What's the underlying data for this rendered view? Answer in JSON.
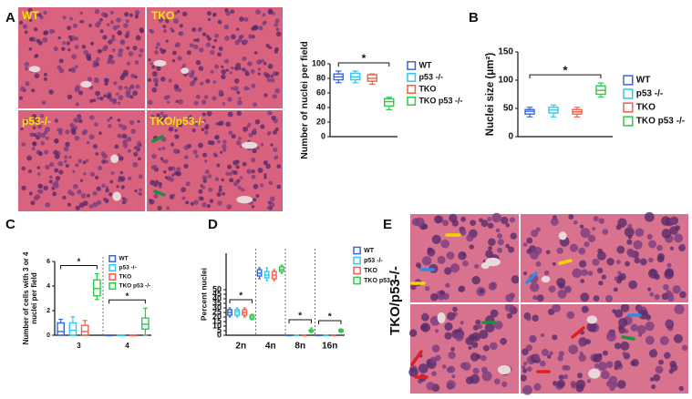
{
  "figure": {
    "panels": [
      "A",
      "B",
      "C",
      "D",
      "E"
    ],
    "image_labels": [
      "WT",
      "TKO",
      "p53-/-",
      "TKO/p53-/-"
    ],
    "panel_e_label": "TKO/p53-/-"
  },
  "chart_data": [
    {
      "type": "box",
      "ylabel": "Number of nuclei per field",
      "ylim": [
        0,
        100
      ],
      "yticks": [
        0,
        20,
        40,
        60,
        80,
        100
      ],
      "annotations": [
        "*"
      ],
      "series": [
        {
          "name": "WT",
          "color": "#3a66d8",
          "values": [
            {
              "min": 74,
              "q1": 78,
              "median": 82,
              "q3": 86,
              "max": 90
            }
          ]
        },
        {
          "name": "p53 -/-",
          "color": "#2ec8f0",
          "values": [
            {
              "min": 74,
              "q1": 78,
              "median": 82,
              "q3": 87,
              "max": 90
            }
          ]
        },
        {
          "name": "TKO",
          "color": "#f0604a",
          "values": [
            {
              "min": 72,
              "q1": 76,
              "median": 80,
              "q3": 85,
              "max": 86
            }
          ]
        },
        {
          "name": "TKO p53 -/-",
          "color": "#2fc84a",
          "values": [
            {
              "min": 37,
              "q1": 42,
              "median": 48,
              "q3": 52,
              "max": 54
            }
          ]
        }
      ]
    },
    {
      "type": "box",
      "ylabel": "Nuclei size (μm²)",
      "ylim": [
        0,
        150
      ],
      "yticks": [
        0,
        50,
        100,
        150
      ],
      "annotations": [
        "*"
      ],
      "series": [
        {
          "name": "WT",
          "color": "#3a66d8",
          "values": [
            {
              "min": 35,
              "q1": 40,
              "median": 45,
              "q3": 48,
              "max": 52
            }
          ]
        },
        {
          "name": "p53 -/-",
          "color": "#2ec8f0",
          "values": [
            {
              "min": 35,
              "q1": 42,
              "median": 47,
              "q3": 52,
              "max": 56
            }
          ]
        },
        {
          "name": "TKO",
          "color": "#f0604a",
          "values": [
            {
              "min": 35,
              "q1": 40,
              "median": 44,
              "q3": 48,
              "max": 52
            }
          ]
        },
        {
          "name": "TKO p53 -/-",
          "color": "#2fc84a",
          "values": [
            {
              "min": 70,
              "q1": 75,
              "median": 82,
              "q3": 90,
              "max": 95
            }
          ]
        }
      ]
    },
    {
      "type": "box",
      "ylabel": [
        "Number of cells with 3 or 4",
        "nuclei per field"
      ],
      "categories": [
        "3",
        "4"
      ],
      "ylim": [
        0,
        6
      ],
      "yticks": [
        0,
        2,
        4,
        6
      ],
      "annotations": [
        "*",
        "*"
      ],
      "series": [
        {
          "name": "WT",
          "color": "#3a66d8",
          "values": [
            {
              "min": 0,
              "q1": 0,
              "median": 0.3,
              "q3": 1,
              "max": 1.3
            },
            {
              "min": 0,
              "q1": 0,
              "median": 0,
              "q3": 0,
              "max": 0
            }
          ]
        },
        {
          "name": "p53 -/-",
          "color": "#2ec8f0",
          "values": [
            {
              "min": 0,
              "q1": 0,
              "median": 0.4,
              "q3": 1,
              "max": 1.5
            },
            {
              "min": 0,
              "q1": 0,
              "median": 0,
              "q3": 0,
              "max": 0
            }
          ]
        },
        {
          "name": "TKO",
          "color": "#f0604a",
          "values": [
            {
              "min": 0,
              "q1": 0,
              "median": 0.3,
              "q3": 0.8,
              "max": 1.2
            },
            {
              "min": 0,
              "q1": 0,
              "median": 0,
              "q3": 0,
              "max": 0
            }
          ]
        },
        {
          "name": "TKO p53 -/-",
          "color": "#2fc84a",
          "values": [
            {
              "min": 2.9,
              "q1": 3.2,
              "median": 3.8,
              "q3": 4.5,
              "max": 5
            },
            {
              "min": 0,
              "q1": 0.5,
              "median": 0.9,
              "q3": 1.4,
              "max": 2.2
            }
          ]
        }
      ]
    },
    {
      "type": "box",
      "ylabel": "Percent nuclei",
      "categories": [
        "2n",
        "4n",
        "8n",
        "16n"
      ],
      "ylim": [
        0,
        90
      ],
      "yticks": [
        0,
        5,
        10,
        15,
        20,
        25,
        30,
        35,
        40,
        45,
        50
      ],
      "annotations": [
        "*",
        "*",
        "*"
      ],
      "series": [
        {
          "name": "WT",
          "color": "#3a66d8",
          "values": [
            {
              "min": 20,
              "q1": 22,
              "median": 25,
              "q3": 28,
              "max": 30
            },
            {
              "min": 62,
              "q1": 65,
              "median": 68,
              "q3": 72,
              "max": 74
            },
            {
              "min": 0,
              "q1": 0,
              "median": 0,
              "q3": 0,
              "max": 0
            },
            {
              "min": 0,
              "q1": 0,
              "median": 0,
              "q3": 0,
              "max": 0
            }
          ]
        },
        {
          "name": "p53 -/-",
          "color": "#2ec8f0",
          "values": [
            {
              "min": 20,
              "q1": 22,
              "median": 26,
              "q3": 28,
              "max": 30
            },
            {
              "min": 60,
              "q1": 63,
              "median": 66,
              "q3": 70,
              "max": 74
            },
            {
              "min": 0,
              "q1": 0,
              "median": 0,
              "q3": 0,
              "max": 0
            },
            {
              "min": 0,
              "q1": 0,
              "median": 0,
              "q3": 0,
              "max": 0
            }
          ]
        },
        {
          "name": "TKO",
          "color": "#f0604a",
          "values": [
            {
              "min": 20,
              "q1": 22,
              "median": 25,
              "q3": 28,
              "max": 30
            },
            {
              "min": 60,
              "q1": 62,
              "median": 66,
              "q3": 70,
              "max": 72
            },
            {
              "min": 0,
              "q1": 0,
              "median": 0,
              "q3": 0,
              "max": 0
            },
            {
              "min": 0,
              "q1": 0,
              "median": 0,
              "q3": 0,
              "max": 0
            }
          ]
        },
        {
          "name": "TKO p53 -/-",
          "color": "#2fc84a",
          "values": [
            {
              "min": 17,
              "q1": 18,
              "median": 20,
              "q3": 22,
              "max": 23
            },
            {
              "min": 68,
              "q1": 70,
              "median": 72,
              "q3": 75,
              "max": 77
            },
            {
              "min": 3,
              "q1": 4,
              "median": 5,
              "q3": 6,
              "max": 8
            },
            {
              "min": 3,
              "q1": 4,
              "median": 5,
              "q3": 6,
              "max": 7
            }
          ]
        }
      ]
    }
  ]
}
